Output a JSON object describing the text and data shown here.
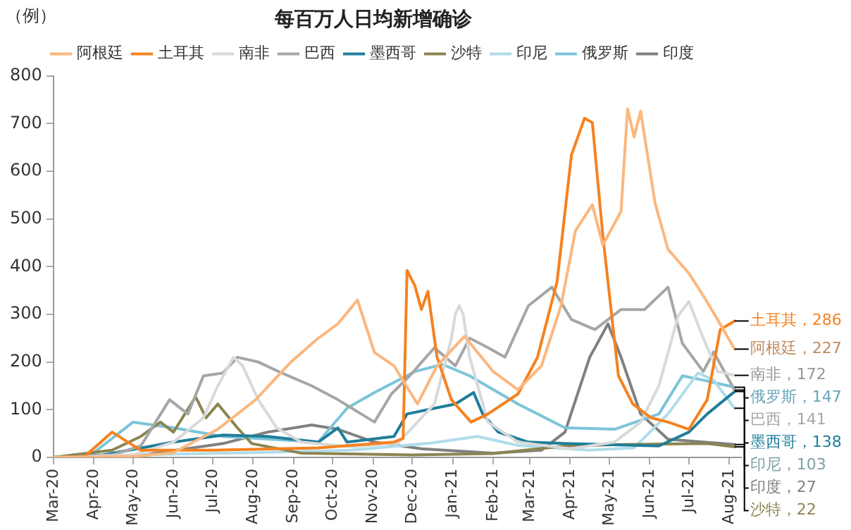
{
  "chart_data": {
    "type": "line",
    "title": "每百万人日均新增确诊",
    "ylabel": "（例）",
    "legend": "top",
    "xlim": [
      "2020-03-01",
      "2021-08-10"
    ],
    "xticks": [
      {
        "value": "2020-03-01",
        "label": "Mar-20"
      },
      {
        "value": "2020-04-01",
        "label": "Apr-20"
      },
      {
        "value": "2020-05-01",
        "label": "May-20"
      },
      {
        "value": "2020-06-01",
        "label": "Jun-20"
      },
      {
        "value": "2020-07-01",
        "label": "Jul-20"
      },
      {
        "value": "2020-08-01",
        "label": "Aug-20"
      },
      {
        "value": "2020-09-01",
        "label": "Sep-20"
      },
      {
        "value": "2020-10-01",
        "label": "Oct-20"
      },
      {
        "value": "2020-11-01",
        "label": "Nov-20"
      },
      {
        "value": "2020-12-01",
        "label": "Dec-20"
      },
      {
        "value": "2021-01-01",
        "label": "Jan-21"
      },
      {
        "value": "2021-02-01",
        "label": "Feb-21"
      },
      {
        "value": "2021-03-01",
        "label": "Mar-21"
      },
      {
        "value": "2021-04-01",
        "label": "Apr-21"
      },
      {
        "value": "2021-05-01",
        "label": "May-21"
      },
      {
        "value": "2021-06-01",
        "label": "Jun-21"
      },
      {
        "value": "2021-07-01",
        "label": "Jul-21"
      },
      {
        "value": "2021-08-01",
        "label": "Aug-21"
      }
    ],
    "ylim": [
      0,
      800
    ],
    "yticks": [
      0,
      100,
      200,
      300,
      400,
      500,
      600,
      700,
      800
    ],
    "series": [
      {
        "name": "阿根廷",
        "color": "#fbb77e",
        "x": [
          "2020-03-01",
          "2020-05-01",
          "2020-06-01",
          "2020-07-05",
          "2020-08-03",
          "2020-08-30",
          "2020-09-20",
          "2020-10-05",
          "2020-10-20",
          "2020-11-02",
          "2020-11-17",
          "2020-12-05",
          "2020-12-20",
          "2021-01-10",
          "2021-02-01",
          "2021-02-20",
          "2021-03-10",
          "2021-03-25",
          "2021-04-05",
          "2021-04-18",
          "2021-04-26",
          "2021-05-10",
          "2021-05-15",
          "2021-05-20",
          "2021-05-25",
          "2021-06-05",
          "2021-06-15",
          "2021-07-01",
          "2021-07-12",
          "2021-07-23",
          "2021-08-05"
        ],
        "values": [
          0,
          2,
          10,
          59,
          121,
          200,
          250,
          280,
          330,
          220,
          192,
          112,
          192,
          254,
          180,
          142,
          192,
          318,
          475,
          530,
          445,
          516,
          731,
          672,
          726,
          534,
          436,
          386,
          339,
          289,
          227
        ],
        "value_labels": [
          null,
          null,
          null,
          null,
          null,
          null,
          null,
          null,
          null,
          null,
          null,
          null,
          null,
          null,
          null,
          null,
          null,
          null,
          null,
          null,
          null,
          null,
          null,
          null,
          null,
          null,
          null,
          null,
          null,
          null,
          "阿根廷，227"
        ]
      },
      {
        "name": "土耳其",
        "color": "#f5821f",
        "x": [
          "2020-03-01",
          "2020-03-25",
          "2020-04-15",
          "2020-05-07",
          "2020-07-01",
          "2020-09-20",
          "2020-11-17",
          "2020-11-24",
          "2020-11-27",
          "2020-12-03",
          "2020-12-08",
          "2020-12-13",
          "2020-12-20",
          "2020-12-31",
          "2021-01-15",
          "2021-01-28",
          "2021-02-20",
          "2021-03-07",
          "2021-03-22",
          "2021-04-02",
          "2021-04-12",
          "2021-04-18",
          "2021-04-26",
          "2021-05-08",
          "2021-05-19",
          "2021-06-02",
          "2021-06-15",
          "2021-07-01",
          "2021-07-15",
          "2021-07-25",
          "2021-08-05"
        ],
        "values": [
          0,
          2,
          53,
          15,
          15,
          20,
          32,
          40,
          392,
          360,
          310,
          348,
          210,
          121,
          74,
          91,
          133,
          210,
          369,
          634,
          711,
          702,
          466,
          171,
          112,
          83,
          74,
          59,
          121,
          268,
          286
        ],
        "value_labels": [
          null,
          null,
          null,
          null,
          null,
          null,
          null,
          null,
          null,
          null,
          null,
          null,
          null,
          null,
          null,
          null,
          null,
          null,
          null,
          null,
          null,
          null,
          null,
          null,
          null,
          null,
          null,
          null,
          null,
          null,
          "土耳其，286"
        ]
      },
      {
        "name": "南非",
        "color": "#d9d9d9",
        "x": [
          "2020-03-01",
          "2020-05-01",
          "2020-06-01",
          "2020-06-24",
          "2020-07-05",
          "2020-07-17",
          "2020-07-24",
          "2020-08-05",
          "2020-08-19",
          "2020-09-07",
          "2020-10-15",
          "2020-11-20",
          "2020-12-18",
          "2020-12-31",
          "2021-01-03",
          "2021-01-06",
          "2021-01-09",
          "2021-01-14",
          "2021-01-28",
          "2021-02-20",
          "2021-04-01",
          "2021-05-05",
          "2021-05-25",
          "2021-06-08",
          "2021-06-23",
          "2021-07-01",
          "2021-07-12",
          "2021-07-23",
          "2021-08-05"
        ],
        "values": [
          0,
          5,
          32,
          83,
          150,
          210,
          192,
          121,
          62,
          32,
          22,
          30,
          112,
          250,
          300,
          318,
          300,
          210,
          74,
          32,
          18,
          32,
          74,
          150,
          298,
          327,
          250,
          180,
          172
        ],
        "value_labels": [
          null,
          null,
          null,
          null,
          null,
          null,
          null,
          null,
          null,
          null,
          null,
          null,
          null,
          null,
          null,
          null,
          null,
          null,
          null,
          null,
          null,
          null,
          null,
          null,
          null,
          null,
          null,
          null,
          "南非，172"
        ]
      },
      {
        "name": "巴西",
        "color": "#a6a6a6",
        "x": [
          "2020-03-01",
          "2020-04-15",
          "2020-05-07",
          "2020-05-29",
          "2020-06-12",
          "2020-06-24",
          "2020-07-09",
          "2020-07-20",
          "2020-08-05",
          "2020-08-23",
          "2020-09-15",
          "2020-10-05",
          "2020-11-02",
          "2020-11-15",
          "2020-11-29",
          "2020-12-18",
          "2021-01-03",
          "2021-01-14",
          "2021-01-28",
          "2021-02-10",
          "2021-02-28",
          "2021-03-18",
          "2021-04-02",
          "2021-04-20",
          "2021-05-10",
          "2021-05-28",
          "2021-06-15",
          "2021-06-26",
          "2021-07-12",
          "2021-07-20",
          "2021-08-05"
        ],
        "values": [
          0,
          5,
          24,
          121,
          91,
          171,
          177,
          210,
          200,
          177,
          150,
          121,
          74,
          133,
          171,
          230,
          192,
          250,
          230,
          210,
          318,
          357,
          289,
          268,
          310,
          310,
          357,
          239,
          180,
          221,
          141
        ],
        "value_labels": [
          null,
          null,
          null,
          null,
          null,
          null,
          null,
          null,
          null,
          null,
          null,
          null,
          null,
          null,
          null,
          null,
          null,
          null,
          null,
          null,
          null,
          null,
          null,
          null,
          null,
          null,
          null,
          null,
          null,
          null,
          "巴西，141"
        ]
      },
      {
        "name": "墨西哥",
        "color": "#1f7e9a",
        "x": [
          "2020-03-01",
          "2020-04-08",
          "2020-06-01",
          "2020-07-09",
          "2020-08-12",
          "2020-09-20",
          "2020-10-05",
          "2020-10-12",
          "2020-11-17",
          "2020-11-27",
          "2020-12-18",
          "2021-01-03",
          "2021-01-17",
          "2021-01-24",
          "2021-02-05",
          "2021-02-28",
          "2021-03-28",
          "2021-06-08",
          "2021-07-01",
          "2021-07-15",
          "2021-08-05"
        ],
        "values": [
          0,
          5,
          32,
          47,
          44,
          32,
          62,
          32,
          44,
          91,
          103,
          112,
          136,
          91,
          53,
          32,
          29,
          24,
          53,
          91,
          138
        ],
        "value_labels": [
          null,
          null,
          null,
          null,
          null,
          null,
          null,
          null,
          null,
          null,
          null,
          null,
          null,
          null,
          null,
          null,
          null,
          null,
          null,
          null,
          "墨西哥，138"
        ]
      },
      {
        "name": "沙特",
        "color": "#8c8450",
        "x": [
          "2020-03-01",
          "2020-04-15",
          "2020-05-07",
          "2020-05-22",
          "2020-06-01",
          "2020-06-18",
          "2020-06-26",
          "2020-07-05",
          "2020-07-20",
          "2020-07-31",
          "2020-09-07",
          "2020-12-01",
          "2021-02-01",
          "2021-03-28",
          "2021-05-10",
          "2021-07-15",
          "2021-08-05"
        ],
        "values": [
          0,
          15,
          44,
          74,
          53,
          127,
          83,
          112,
          62,
          29,
          9,
          5,
          8,
          24,
          27,
          29,
          22
        ],
        "value_labels": [
          null,
          null,
          null,
          null,
          null,
          null,
          null,
          null,
          null,
          null,
          null,
          null,
          null,
          null,
          null,
          null,
          "沙特，22"
        ]
      },
      {
        "name": "印尼",
        "color": "#b0dcea",
        "x": [
          "2020-03-01",
          "2020-05-01",
          "2020-08-01",
          "2020-10-15",
          "2020-12-15",
          "2021-01-20",
          "2021-02-20",
          "2021-04-15",
          "2021-05-20",
          "2021-06-15",
          "2021-07-08",
          "2021-07-20",
          "2021-08-05"
        ],
        "values": [
          0,
          5,
          10,
          15,
          30,
          44,
          25,
          15,
          20,
          91,
          177,
          162,
          103
        ],
        "value_labels": [
          null,
          null,
          null,
          null,
          null,
          null,
          null,
          null,
          null,
          null,
          null,
          null,
          "印尼，103"
        ]
      },
      {
        "name": "俄罗斯",
        "color": "#7cc4d8",
        "x": [
          "2020-03-01",
          "2020-04-01",
          "2020-05-01",
          "2020-06-01",
          "2020-07-09",
          "2020-09-20",
          "2020-10-12",
          "2020-11-02",
          "2020-12-03",
          "2020-12-24",
          "2021-01-14",
          "2021-02-20",
          "2021-03-28",
          "2021-05-05",
          "2021-06-08",
          "2021-06-26",
          "2021-07-12",
          "2021-08-05"
        ],
        "values": [
          0,
          10,
          74,
          62,
          44,
          32,
          103,
          136,
          180,
          195,
          171,
          112,
          62,
          59,
          91,
          171,
          162,
          147
        ],
        "value_labels": [
          null,
          null,
          null,
          null,
          null,
          null,
          null,
          null,
          null,
          null,
          null,
          null,
          null,
          null,
          null,
          null,
          null,
          "俄罗斯，147"
        ]
      },
      {
        "name": "印度",
        "color": "#808080",
        "x": [
          "2020-03-01",
          "2020-05-01",
          "2020-07-09",
          "2020-08-12",
          "2020-09-15",
          "2020-10-05",
          "2020-11-02",
          "2020-12-08",
          "2021-02-01",
          "2021-03-10",
          "2021-03-28",
          "2021-04-16",
          "2021-04-30",
          "2021-05-10",
          "2021-05-25",
          "2021-06-15",
          "2021-08-05"
        ],
        "values": [
          0,
          2,
          29,
          53,
          68,
          59,
          32,
          18,
          9,
          15,
          53,
          210,
          280,
          210,
          91,
          38,
          27
        ],
        "value_labels": [
          null,
          null,
          null,
          null,
          null,
          null,
          null,
          null,
          null,
          null,
          null,
          null,
          null,
          null,
          null,
          null,
          "印度，27"
        ]
      }
    ]
  }
}
